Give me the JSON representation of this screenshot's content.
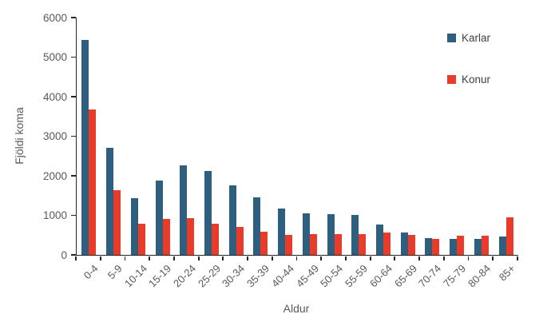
{
  "chart_data": {
    "type": "bar",
    "title": "",
    "xlabel": "Aldur",
    "ylabel": "Fjöldi koma",
    "categories": [
      "0-4",
      "5-9",
      "10-14",
      "15-19",
      "20-24",
      "25-29",
      "30-34",
      "35-39",
      "40-44",
      "45-49",
      "50-54",
      "55-59",
      "60-64",
      "65-69",
      "70-74",
      "75-79",
      "80-84",
      "85+"
    ],
    "series": [
      {
        "name": "Karlar",
        "color": "#2E5F7E",
        "values": [
          5430,
          2710,
          1430,
          1880,
          2260,
          2120,
          1750,
          1450,
          1180,
          1050,
          1030,
          1010,
          770,
          560,
          430,
          400,
          410,
          470
        ]
      },
      {
        "name": "Konur",
        "color": "#E83B2A",
        "values": [
          3680,
          1640,
          780,
          910,
          930,
          790,
          700,
          590,
          500,
          520,
          530,
          520,
          570,
          500,
          410,
          490,
          490,
          950
        ]
      }
    ],
    "ylim": [
      0,
      6000
    ],
    "yticks": [
      0,
      1000,
      2000,
      3000,
      4000,
      5000,
      6000
    ],
    "grid": false,
    "legend_position": "upper-right",
    "axis_color": "#262626",
    "label_color": "#595959"
  }
}
